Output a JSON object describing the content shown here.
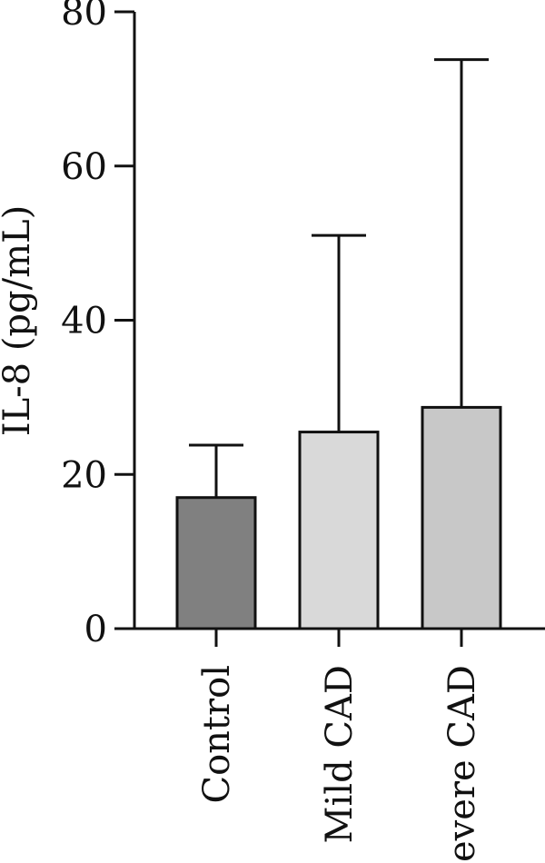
{
  "chart_data": {
    "type": "bar",
    "title": "",
    "xlabel": "",
    "ylabel": "IL-8 (pg/mL)",
    "ylim": [
      0,
      80
    ],
    "yticks": [
      "0",
      "20",
      "40",
      "60",
      "80"
    ],
    "categories": [
      "Control",
      "Mild CAD",
      "Severe CAD"
    ],
    "values": [
      17,
      25.5,
      28.7
    ],
    "error_upper": [
      23.8,
      51,
      73.8
    ],
    "bar_colors": [
      "#808080",
      "#d9d9d9",
      "#c8c8c8"
    ],
    "grid": false,
    "legend": "none"
  }
}
